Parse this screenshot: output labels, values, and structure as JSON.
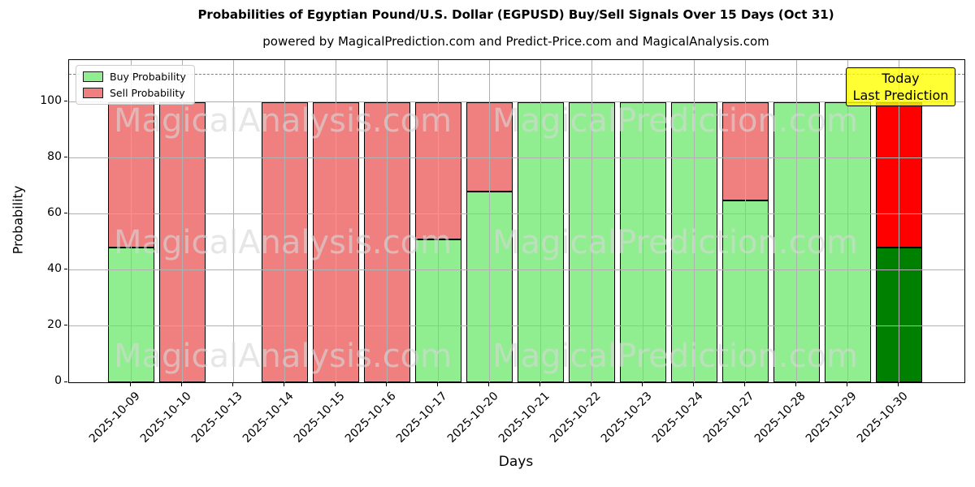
{
  "title": "Probabilities of Egyptian Pound/U.S. Dollar (EGPUSD) Buy/Sell Signals Over 15 Days (Oct 31)",
  "subtitle": "powered by MagicalPrediction.com and Predict-Price.com and MagicalAnalysis.com",
  "legend": {
    "buy_label": "Buy Probability",
    "sell_label": "Sell Probability"
  },
  "annotation": {
    "line1": "Today",
    "line2": "Last Prediction"
  },
  "watermarks": {
    "left": "MagicalAnalysis.com",
    "right": "MagicalPrediction.com"
  },
  "colors": {
    "buy": "#90EE90",
    "sell": "#F08080",
    "today_buy": "#008000",
    "today_sell": "#FF0000",
    "annotation_bg": "#FFFF00",
    "grid": "#b0b0b0",
    "dashed_line": "#7f7f7f"
  },
  "chart_data": {
    "type": "bar",
    "stacked": true,
    "title": "Probabilities of Egyptian Pound/U.S. Dollar (EGPUSD) Buy/Sell Signals Over 15 Days (Oct 31)",
    "xlabel": "Days",
    "ylabel": "Probability",
    "categories": [
      "2025-10-09",
      "2025-10-10",
      "2025-10-13",
      "2025-10-14",
      "2025-10-15",
      "2025-10-16",
      "2025-10-17",
      "2025-10-20",
      "2025-10-21",
      "2025-10-22",
      "2025-10-23",
      "2025-10-24",
      "2025-10-27",
      "2025-10-28",
      "2025-10-29",
      "2025-10-30"
    ],
    "series": [
      {
        "name": "Buy Probability",
        "color": "#90EE90",
        "values": [
          48,
          0,
          0,
          0,
          0,
          0,
          51,
          68,
          100,
          100,
          100,
          100,
          65,
          100,
          100,
          48
        ]
      },
      {
        "name": "Sell Probability",
        "color": "#F08080",
        "values": [
          52,
          100,
          0,
          100,
          100,
          100,
          49,
          32,
          0,
          0,
          0,
          0,
          35,
          0,
          0,
          52
        ]
      }
    ],
    "today_index": 15,
    "today_colors": {
      "buy": "#008000",
      "sell": "#FF0000"
    },
    "yticks": [
      0,
      20,
      40,
      60,
      80,
      100
    ],
    "ylim": [
      0,
      115
    ],
    "dashed_line_y": 110,
    "grid": true,
    "legend_position": "upper-left"
  }
}
